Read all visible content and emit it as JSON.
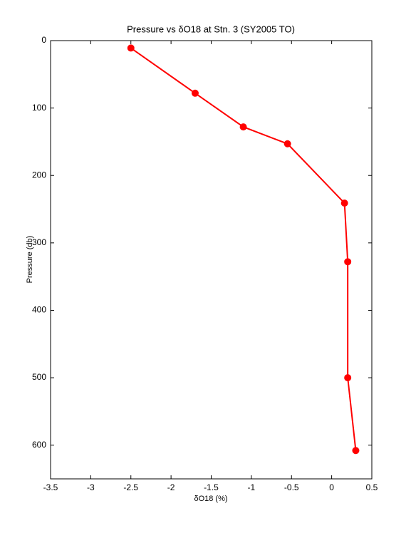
{
  "chart_data": {
    "type": "line",
    "title": "Pressure vs δO18 at Stn. 3 (SY2005 TO)",
    "x_label": "δO18 (%)",
    "y_label": "Pressure (db)",
    "x": [
      -2.5,
      -1.7,
      -1.1,
      -0.55,
      0.16,
      0.2,
      0.2,
      0.3
    ],
    "values": [
      11,
      78,
      128,
      153,
      241,
      328,
      500,
      608
    ],
    "color": "#ff0000",
    "xlim": [
      -3.5,
      0.5
    ],
    "xticks": [
      -3.5,
      -3,
      -2.5,
      -2,
      -1.5,
      -1,
      -0.5,
      0,
      0.5
    ],
    "ylim": [
      0,
      650
    ],
    "yticks": [
      0,
      100,
      200,
      300,
      400,
      500,
      600
    ],
    "y_reversed": true,
    "grid": false
  }
}
